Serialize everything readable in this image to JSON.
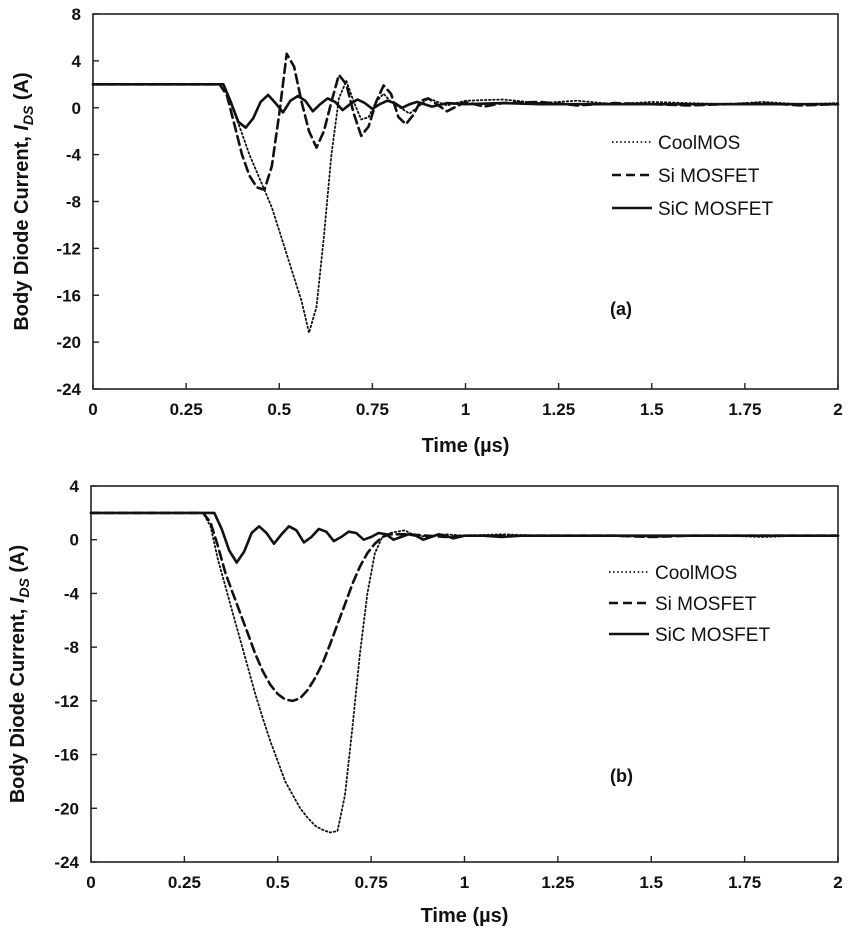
{
  "chart_data": [
    {
      "type": "line",
      "panel_label": "(a)",
      "xlabel": "Time (µs)",
      "ylabel_prefix": "Body Diode Current, ",
      "ylabel_symbol": "I",
      "ylabel_sub": "DS",
      "ylabel_suffix": " (A)",
      "xlim": [
        0,
        2
      ],
      "ylim": [
        -24,
        8
      ],
      "xticks": [
        0,
        0.25,
        0.5,
        0.75,
        1,
        1.25,
        1.5,
        1.75,
        2
      ],
      "xtick_labels": [
        "0",
        "0.25",
        "0.5",
        "0.75",
        "1",
        "1.25",
        "1.5",
        "1.75",
        "2"
      ],
      "yticks": [
        8,
        4,
        0,
        -4,
        -8,
        -12,
        -16,
        -20,
        -24
      ],
      "ytick_labels": [
        "8",
        "4",
        "0",
        "-4",
        "-8",
        "-12",
        "-16",
        "-20",
        "-24"
      ],
      "legend_position": "right",
      "series": [
        {
          "name": "CoolMOS",
          "dash": "dotted",
          "x": [
            0,
            0.34,
            0.36,
            0.38,
            0.4,
            0.42,
            0.44,
            0.46,
            0.48,
            0.5,
            0.52,
            0.54,
            0.56,
            0.58,
            0.6,
            0.62,
            0.64,
            0.66,
            0.68,
            0.7,
            0.72,
            0.74,
            0.76,
            0.78,
            0.8,
            0.85,
            0.9,
            0.95,
            1.0,
            1.1,
            1.2,
            1.3,
            1.4,
            1.5,
            1.6,
            1.7,
            1.8,
            1.9,
            2.0
          ],
          "y": [
            2,
            2,
            1.2,
            -0.5,
            -2.2,
            -4.0,
            -5.5,
            -7.0,
            -8.5,
            -10.5,
            -12.5,
            -14.5,
            -16.5,
            -19.2,
            -17.0,
            -11.0,
            -4.0,
            0.8,
            2.3,
            0.5,
            -1.0,
            -0.8,
            0.5,
            1.2,
            0.5,
            -0.5,
            0.8,
            0.2,
            0.6,
            0.7,
            0.4,
            0.6,
            0.3,
            0.5,
            0.4,
            0.3,
            0.5,
            0.3,
            0.4
          ]
        },
        {
          "name": "Si MOSFET",
          "dash": "dashed",
          "x": [
            0,
            0.34,
            0.36,
            0.38,
            0.4,
            0.42,
            0.44,
            0.46,
            0.48,
            0.5,
            0.52,
            0.54,
            0.56,
            0.58,
            0.6,
            0.62,
            0.64,
            0.66,
            0.68,
            0.7,
            0.72,
            0.74,
            0.76,
            0.78,
            0.8,
            0.82,
            0.84,
            0.86,
            0.88,
            0.9,
            0.95,
            1.0,
            1.05,
            1.1,
            1.2,
            1.3,
            1.4,
            1.5,
            1.6,
            1.7,
            1.8,
            1.9,
            2.0
          ],
          "y": [
            2,
            2,
            1.0,
            -1.5,
            -4.0,
            -5.8,
            -6.8,
            -7.0,
            -5.0,
            -0.5,
            4.6,
            3.5,
            0.5,
            -2.0,
            -3.4,
            -2.0,
            0.5,
            2.8,
            2.0,
            -0.5,
            -2.4,
            -1.6,
            0.5,
            1.9,
            1.2,
            -0.8,
            -1.4,
            -0.6,
            0.6,
            0.8,
            -0.3,
            0.5,
            0.1,
            0.4,
            0.5,
            0.2,
            0.4,
            0.3,
            0.2,
            0.3,
            0.4,
            0.2,
            0.3
          ]
        },
        {
          "name": "SiC MOSFET",
          "dash": "solid",
          "x": [
            0,
            0.35,
            0.37,
            0.39,
            0.41,
            0.43,
            0.45,
            0.47,
            0.49,
            0.51,
            0.53,
            0.55,
            0.57,
            0.59,
            0.61,
            0.63,
            0.65,
            0.67,
            0.69,
            0.71,
            0.73,
            0.75,
            0.77,
            0.79,
            0.81,
            0.83,
            0.85,
            0.87,
            0.89,
            0.91,
            0.95,
            1.0,
            1.1,
            1.2,
            1.3,
            1.4,
            1.5,
            1.6,
            1.7,
            1.8,
            1.9,
            2.0
          ],
          "y": [
            2,
            2,
            0.5,
            -1.2,
            -1.7,
            -0.9,
            0.5,
            1.1,
            0.4,
            -0.4,
            0.6,
            1.0,
            0.6,
            -0.3,
            0.3,
            0.8,
            0.5,
            -0.2,
            0.3,
            0.7,
            0.4,
            -0.1,
            0.3,
            0.6,
            0.4,
            0.0,
            0.3,
            0.5,
            0.3,
            0.1,
            0.4,
            0.3,
            0.4,
            0.3,
            0.3,
            0.3,
            0.3,
            0.3,
            0.3,
            0.3,
            0.3,
            0.3
          ]
        }
      ]
    },
    {
      "type": "line",
      "panel_label": "(b)",
      "xlabel": "Time (µs)",
      "ylabel_prefix": "Body Diode Current, ",
      "ylabel_symbol": "I",
      "ylabel_sub": "DS",
      "ylabel_suffix": " (A)",
      "xlim": [
        0,
        2
      ],
      "ylim": [
        -24,
        4
      ],
      "xticks": [
        0,
        0.25,
        0.5,
        0.75,
        1,
        1.25,
        1.5,
        1.75,
        2
      ],
      "xtick_labels": [
        "0",
        "0.25",
        "0.5",
        "0.75",
        "1",
        "1.25",
        "1.5",
        "1.75",
        "2"
      ],
      "yticks": [
        4,
        0,
        -4,
        -8,
        -12,
        -16,
        -20,
        -24
      ],
      "ytick_labels": [
        "4",
        "0",
        "-4",
        "-8",
        "-12",
        "-16",
        "-20",
        "-24"
      ],
      "legend_position": "right",
      "series": [
        {
          "name": "CoolMOS",
          "dash": "dotted",
          "x": [
            0,
            0.3,
            0.32,
            0.34,
            0.36,
            0.38,
            0.4,
            0.42,
            0.44,
            0.46,
            0.48,
            0.5,
            0.52,
            0.54,
            0.56,
            0.58,
            0.6,
            0.62,
            0.64,
            0.66,
            0.68,
            0.7,
            0.72,
            0.74,
            0.76,
            0.78,
            0.8,
            0.82,
            0.84,
            0.86,
            0.9,
            0.95,
            1.0,
            1.1,
            1.2,
            1.3,
            1.4,
            1.5,
            1.6,
            1.7,
            1.8,
            1.9,
            2.0
          ],
          "y": [
            2,
            2,
            1.0,
            -1.5,
            -3.5,
            -5.5,
            -7.5,
            -9.5,
            -11.5,
            -13.3,
            -15.0,
            -16.5,
            -18.0,
            -19.0,
            -20.0,
            -20.7,
            -21.3,
            -21.6,
            -21.8,
            -21.7,
            -19.0,
            -14.0,
            -8.5,
            -4.0,
            -1.0,
            0.2,
            0.5,
            0.6,
            0.7,
            0.4,
            0.2,
            0.4,
            0.3,
            0.4,
            0.3,
            0.3,
            0.3,
            0.2,
            0.3,
            0.3,
            0.2,
            0.3,
            0.3
          ]
        },
        {
          "name": "Si MOSFET",
          "dash": "dashed",
          "x": [
            0,
            0.3,
            0.32,
            0.34,
            0.36,
            0.38,
            0.4,
            0.42,
            0.44,
            0.46,
            0.48,
            0.5,
            0.52,
            0.54,
            0.56,
            0.58,
            0.6,
            0.62,
            0.64,
            0.66,
            0.68,
            0.7,
            0.72,
            0.74,
            0.76,
            0.78,
            0.8,
            0.85,
            0.9,
            0.95,
            1.0,
            1.1,
            1.2,
            1.3,
            1.4,
            1.5,
            1.6,
            1.7,
            1.8,
            1.9,
            2.0
          ],
          "y": [
            2,
            2,
            1.3,
            -0.5,
            -2.5,
            -4.0,
            -5.5,
            -7.0,
            -8.5,
            -9.8,
            -10.8,
            -11.5,
            -11.9,
            -12.0,
            -11.8,
            -11.2,
            -10.3,
            -9.2,
            -7.8,
            -6.3,
            -4.8,
            -3.3,
            -2.0,
            -1.0,
            -0.3,
            0.2,
            0.4,
            0.4,
            0.3,
            0.2,
            0.3,
            0.3,
            0.3,
            0.3,
            0.3,
            0.2,
            0.3,
            0.3,
            0.3,
            0.3,
            0.3
          ]
        },
        {
          "name": "SiC MOSFET",
          "dash": "solid",
          "x": [
            0,
            0.33,
            0.35,
            0.37,
            0.39,
            0.41,
            0.43,
            0.45,
            0.47,
            0.49,
            0.51,
            0.53,
            0.55,
            0.57,
            0.59,
            0.61,
            0.63,
            0.65,
            0.67,
            0.69,
            0.71,
            0.73,
            0.75,
            0.77,
            0.79,
            0.81,
            0.83,
            0.85,
            0.87,
            0.89,
            0.91,
            0.93,
            0.95,
            0.97,
            1.0,
            1.05,
            1.1,
            1.15,
            1.2,
            1.3,
            1.4,
            1.5,
            1.6,
            1.7,
            1.8,
            1.9,
            2.0
          ],
          "y": [
            2,
            2,
            0.8,
            -0.8,
            -1.7,
            -0.9,
            0.5,
            1.0,
            0.5,
            -0.3,
            0.4,
            1.0,
            0.7,
            -0.2,
            0.2,
            0.8,
            0.6,
            -0.1,
            0.2,
            0.6,
            0.5,
            0.0,
            0.2,
            0.5,
            0.4,
            0.0,
            0.2,
            0.4,
            0.3,
            0.0,
            0.2,
            0.4,
            0.3,
            0.1,
            0.3,
            0.3,
            0.2,
            0.3,
            0.3,
            0.3,
            0.3,
            0.3,
            0.3,
            0.3,
            0.3,
            0.3,
            0.3
          ]
        }
      ]
    }
  ]
}
